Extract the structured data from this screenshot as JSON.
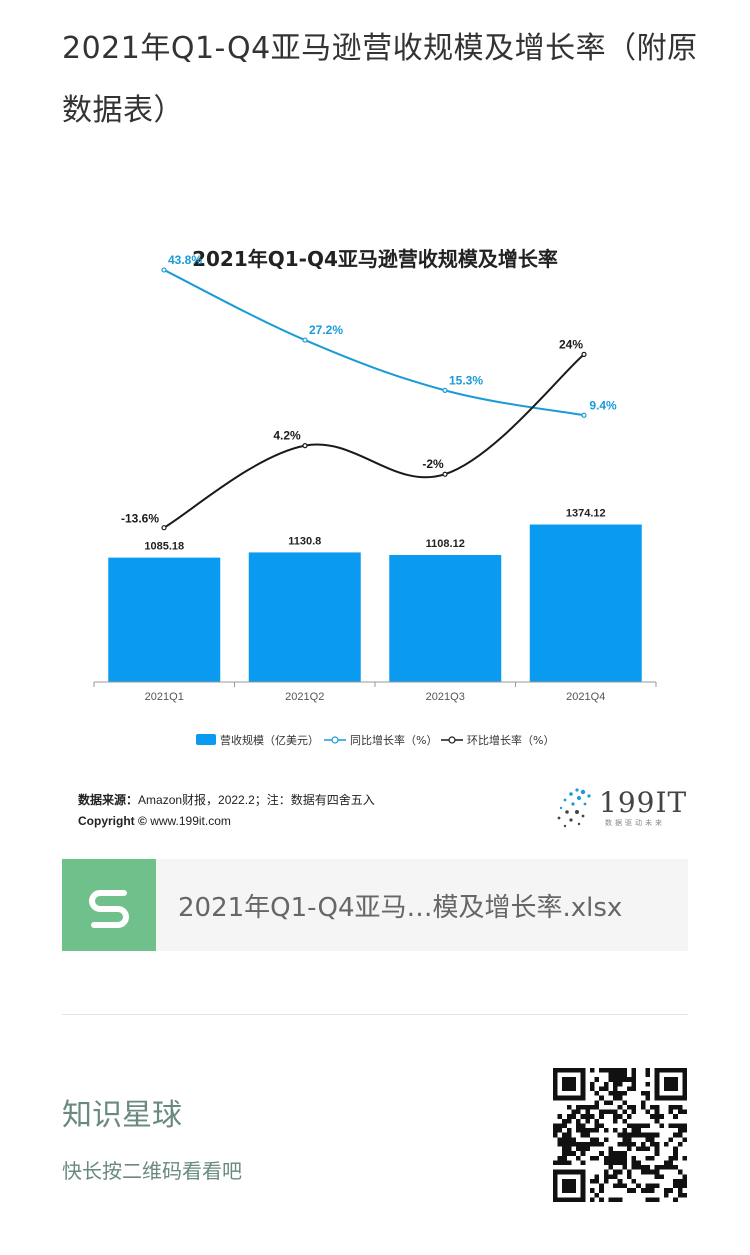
{
  "post": {
    "title": "2021年Q1-Q4亚马逊营收规模及增长率（附原数据表）"
  },
  "chart_data": {
    "type": "bar",
    "title": "2021年Q1-Q4亚马逊营收规模及增长率",
    "categories": [
      "2021Q1",
      "2021Q2",
      "2021Q3",
      "2021Q4"
    ],
    "series": [
      {
        "name": "营收规模（亿美元）",
        "type": "bar",
        "values": [
          1085.18,
          1130.8,
          1108.12,
          1374.12
        ],
        "labels": [
          "1085.18",
          "1130.8",
          "1108.12",
          "1374.12"
        ],
        "color": "#0a9bf0"
      },
      {
        "name": "同比增长率（%）",
        "type": "line",
        "values": [
          43.8,
          27.2,
          15.3,
          9.4
        ],
        "labels": [
          "43.8%",
          "27.2%",
          "15.3%",
          "9.4%"
        ],
        "color": "#1a9bd7"
      },
      {
        "name": "环比增长率（%）",
        "type": "line",
        "values": [
          -13.6,
          4.2,
          -2,
          24
        ],
        "labels": [
          "-13.6%",
          "4.2%",
          "-2%",
          "24%"
        ],
        "color": "#1a1a1a"
      }
    ],
    "legend_position": "bottom",
    "grid": false
  },
  "source": {
    "label": "数据来源：",
    "text": "Amazon财报，2022.2；注：数据有四舍五入",
    "copyright_label": "Copyright ©",
    "copyright_text": "www.199it.com"
  },
  "brand": {
    "logo_text": "199IT",
    "logo_sub": "数据驱动未来",
    "accent": "#1a9bd7"
  },
  "file": {
    "name": "2021年Q1-Q4亚马…模及增长率.xlsx",
    "icon": "spreadsheet-s-icon",
    "icon_color": "#6fc08a"
  },
  "planet": {
    "title": "知识星球",
    "subtitle": "快长按二维码看看吧",
    "color": "#6a8a7e"
  }
}
